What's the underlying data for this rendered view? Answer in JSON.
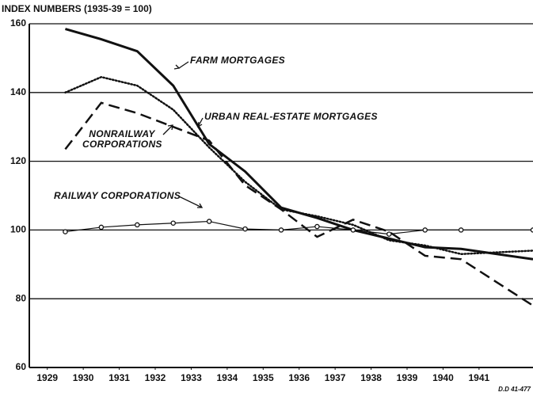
{
  "chart_data": {
    "type": "line",
    "title": "INDEX NUMBERS (1935-39 = 100)",
    "footnote": "D.D 41-477",
    "x": [
      1929.5,
      1930.5,
      1931.5,
      1932.5,
      1933.5,
      1934.5,
      1935.5,
      1936.5,
      1937.5,
      1938.5,
      1939.5,
      1940.5,
      1942.5
    ],
    "xlim": [
      1928.5,
      1942.5
    ],
    "xticks": [
      {
        "value": 1929,
        "label": "1929"
      },
      {
        "value": 1930,
        "label": "1930"
      },
      {
        "value": 1931,
        "label": "1931"
      },
      {
        "value": 1932,
        "label": "1932"
      },
      {
        "value": 1933,
        "label": "1933"
      },
      {
        "value": 1934,
        "label": "1934"
      },
      {
        "value": 1935,
        "label": "1935"
      },
      {
        "value": 1936,
        "label": "1936"
      },
      {
        "value": 1937,
        "label": "1937"
      },
      {
        "value": 1938,
        "label": "1938"
      },
      {
        "value": 1939,
        "label": "1939"
      },
      {
        "value": 1940,
        "label": "1940"
      },
      {
        "value": 1941,
        "label": "1941"
      }
    ],
    "ylim": [
      60,
      160
    ],
    "yticks": [
      60,
      80,
      100,
      120,
      140,
      160
    ],
    "grid": true,
    "series": [
      {
        "name": "FARM MORTGAGES",
        "color": "#111111",
        "style": "solid",
        "width": 3,
        "values": [
          158.5,
          155.5,
          152,
          142,
          125,
          117,
          106.5,
          103.5,
          100,
          97.5,
          95,
          94.5,
          91.5
        ]
      },
      {
        "name": "URBAN REAL-ESTATE MORTGAGES",
        "color": "#111111",
        "style": "dotted",
        "width": 2.5,
        "values": [
          140,
          144.5,
          142,
          135,
          124,
          114,
          106,
          104,
          101.5,
          97,
          95.5,
          93,
          94
        ]
      },
      {
        "name": "NONRAILWAY CORPORATIONS",
        "color": "#111111",
        "style": "dashed",
        "width": 2.5,
        "values": [
          123.5,
          137,
          134,
          130,
          126,
          113,
          106,
          98,
          103,
          99.5,
          92.5,
          91.5,
          78
        ]
      },
      {
        "name": "RAILWAY CORPORATIONS",
        "color": "#111111",
        "style": "solid",
        "width": 1.2,
        "markers": true,
        "values": [
          99.5,
          100.8,
          101.5,
          102,
          102.5,
          100.3,
          100,
          101,
          100,
          98.8,
          100,
          100,
          100
        ]
      }
    ]
  }
}
